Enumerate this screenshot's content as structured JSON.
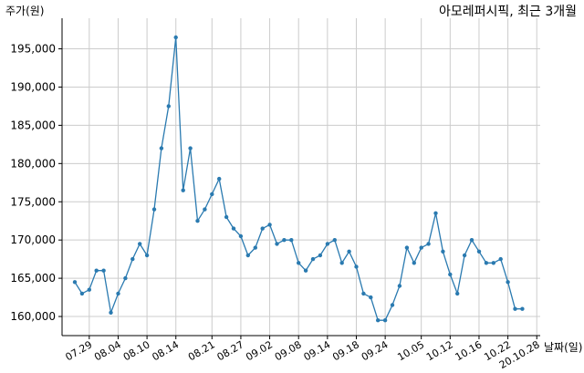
{
  "chart_data": {
    "type": "line",
    "title": "아모레퍼시픽, 최근 3개월",
    "ylabel": "주가(원)",
    "xlabel": "날짜(일)",
    "ylim": [
      157500,
      199000
    ],
    "yticks": [
      160000,
      165000,
      170000,
      175000,
      180000,
      185000,
      190000,
      195000
    ],
    "ytick_labels": [
      "160,000",
      "165,000",
      "170,000",
      "175,000",
      "180,000",
      "185,000",
      "190,000",
      "195,000"
    ],
    "xtick_labels": [
      "07.29",
      "08.04",
      "08.10",
      "08.14",
      "08.21",
      "08.27",
      "09.02",
      "09.08",
      "09.14",
      "09.18",
      "09.24",
      "10.05",
      "10.12",
      "10.16",
      "10.22",
      "20.10.28"
    ],
    "xtick_index": [
      2,
      6,
      10,
      14,
      19,
      23,
      27,
      31,
      35,
      39,
      43,
      48,
      52,
      56,
      60,
      64
    ],
    "grid": true,
    "line_color": "#2a7ab0",
    "series": [
      {
        "values": [
          164500,
          163000,
          163500,
          166000,
          166000,
          160500,
          163000,
          165000,
          167500,
          169500,
          168000,
          174000,
          182000,
          187500,
          196500,
          176500,
          182000,
          172500,
          174000,
          176000,
          178000,
          173000,
          171500,
          170500,
          168000,
          169000,
          171500,
          172000,
          169500,
          170000,
          170000,
          167000,
          166000,
          167500,
          168000,
          169500,
          170000,
          167000,
          168500,
          166500,
          163000,
          162500,
          159500,
          159500,
          161500,
          164000,
          169000,
          167000,
          169000,
          169500,
          173500,
          168500,
          165500,
          163000,
          168000,
          170000,
          168500,
          167000,
          167000,
          167500,
          164500,
          161000,
          161000
        ]
      }
    ]
  }
}
